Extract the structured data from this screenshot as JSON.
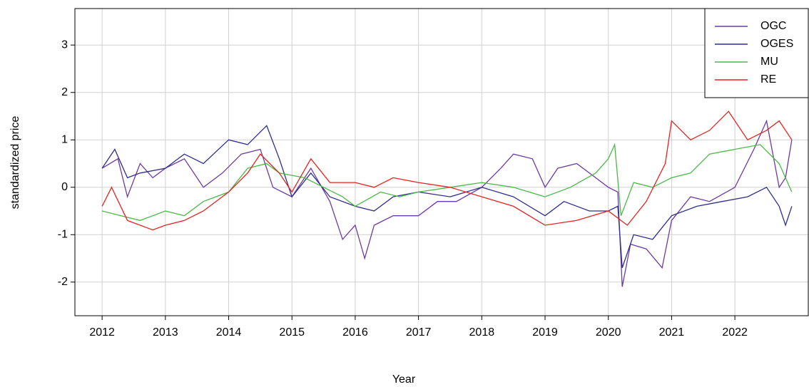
{
  "chart_data": {
    "type": "line",
    "x_label": "Year",
    "y_label": "standardized price",
    "xlim": [
      2011.57,
      2023.16
    ],
    "ylim": [
      -2.71,
      3.77
    ],
    "xticks": [
      2012,
      2013,
      2014,
      2015,
      2016,
      2017,
      2018,
      2019,
      2020,
      2021,
      2022
    ],
    "yticks": [
      -2,
      -1,
      0,
      1,
      2,
      3
    ],
    "grid": true,
    "legend": "top-right",
    "series": [
      {
        "name": "OGC",
        "color": "#6b3aa6",
        "x": [
          2012.0,
          2012.25,
          2012.4,
          2012.6,
          2012.8,
          2013.0,
          2013.3,
          2013.6,
          2013.9,
          2014.2,
          2014.5,
          2014.7,
          2015.0,
          2015.3,
          2015.6,
          2015.8,
          2016.0,
          2016.15,
          2016.3,
          2016.6,
          2017.0,
          2017.3,
          2017.6,
          2018.0,
          2018.3,
          2018.5,
          2018.8,
          2019.0,
          2019.2,
          2019.5,
          2019.8,
          2020.0,
          2020.15,
          2020.22,
          2020.35,
          2020.6,
          2020.85,
          2021.0,
          2021.3,
          2021.6,
          2022.0,
          2022.3,
          2022.5,
          2022.7,
          2022.8,
          2022.9
        ],
        "values": [
          0.4,
          0.6,
          -0.2,
          0.5,
          0.2,
          0.4,
          0.6,
          0.0,
          0.3,
          0.7,
          0.8,
          0.0,
          -0.2,
          0.4,
          -0.3,
          -1.1,
          -0.8,
          -1.5,
          -0.8,
          -0.6,
          -0.6,
          -0.3,
          -0.3,
          0.0,
          0.4,
          0.7,
          0.6,
          0.0,
          0.4,
          0.5,
          0.2,
          0.0,
          -0.1,
          -2.1,
          -1.2,
          -1.3,
          -1.7,
          -0.7,
          -0.2,
          -0.3,
          0.0,
          0.8,
          1.4,
          0.0,
          0.2,
          1.0
        ]
      },
      {
        "name": "OGES",
        "color": "#2e2e8f",
        "x": [
          2012.0,
          2012.2,
          2012.4,
          2012.6,
          2013.0,
          2013.3,
          2013.6,
          2014.0,
          2014.3,
          2014.6,
          2014.8,
          2015.0,
          2015.3,
          2015.6,
          2016.0,
          2016.3,
          2016.6,
          2017.0,
          2017.5,
          2018.0,
          2018.5,
          2019.0,
          2019.3,
          2019.7,
          2020.0,
          2020.15,
          2020.22,
          2020.4,
          2020.7,
          2021.0,
          2021.4,
          2021.8,
          2022.2,
          2022.5,
          2022.7,
          2022.8,
          2022.9
        ],
        "values": [
          0.4,
          0.8,
          0.2,
          0.3,
          0.4,
          0.7,
          0.5,
          1.0,
          0.9,
          1.3,
          0.6,
          -0.2,
          0.3,
          -0.2,
          -0.4,
          -0.5,
          -0.2,
          -0.1,
          -0.2,
          0.0,
          -0.2,
          -0.6,
          -0.3,
          -0.5,
          -0.5,
          -0.4,
          -1.7,
          -1.0,
          -1.1,
          -0.6,
          -0.4,
          -0.3,
          -0.2,
          0.0,
          -0.4,
          -0.8,
          -0.4
        ]
      },
      {
        "name": "MU",
        "color": "#4cb847",
        "x": [
          2012.0,
          2012.3,
          2012.6,
          2013.0,
          2013.3,
          2013.6,
          2014.0,
          2014.3,
          2014.6,
          2014.8,
          2015.2,
          2015.5,
          2015.8,
          2016.0,
          2016.4,
          2016.7,
          2017.0,
          2017.5,
          2018.0,
          2018.5,
          2019.0,
          2019.4,
          2019.8,
          2020.0,
          2020.1,
          2020.2,
          2020.4,
          2020.7,
          2021.0,
          2021.3,
          2021.6,
          2022.0,
          2022.4,
          2022.7,
          2022.9
        ],
        "values": [
          -0.5,
          -0.6,
          -0.7,
          -0.5,
          -0.6,
          -0.3,
          -0.1,
          0.4,
          0.5,
          0.3,
          0.2,
          0.0,
          -0.2,
          -0.4,
          -0.1,
          -0.2,
          -0.1,
          0.0,
          0.1,
          0.0,
          -0.2,
          0.0,
          0.3,
          0.6,
          0.9,
          -0.6,
          0.1,
          0.0,
          0.2,
          0.3,
          0.7,
          0.8,
          0.9,
          0.5,
          -0.1
        ]
      },
      {
        "name": "RE",
        "color": "#e5231f",
        "x": [
          2012.0,
          2012.15,
          2012.4,
          2012.8,
          2013.0,
          2013.3,
          2013.6,
          2014.0,
          2014.3,
          2014.5,
          2014.8,
          2015.0,
          2015.3,
          2015.6,
          2016.0,
          2016.3,
          2016.6,
          2017.0,
          2017.5,
          2018.0,
          2018.5,
          2019.0,
          2019.5,
          2020.0,
          2020.3,
          2020.6,
          2020.9,
          2021.0,
          2021.3,
          2021.6,
          2021.9,
          2022.2,
          2022.5,
          2022.7,
          2022.9
        ],
        "values": [
          -0.4,
          0.0,
          -0.7,
          -0.9,
          -0.8,
          -0.7,
          -0.5,
          -0.1,
          0.3,
          0.7,
          0.3,
          -0.1,
          0.6,
          0.1,
          0.1,
          0.0,
          0.2,
          0.1,
          0.0,
          -0.2,
          -0.4,
          -0.8,
          -0.7,
          -0.5,
          -0.8,
          -0.3,
          0.5,
          1.4,
          1.0,
          1.2,
          1.6,
          1.0,
          1.2,
          1.4,
          1.0
        ]
      }
    ]
  }
}
